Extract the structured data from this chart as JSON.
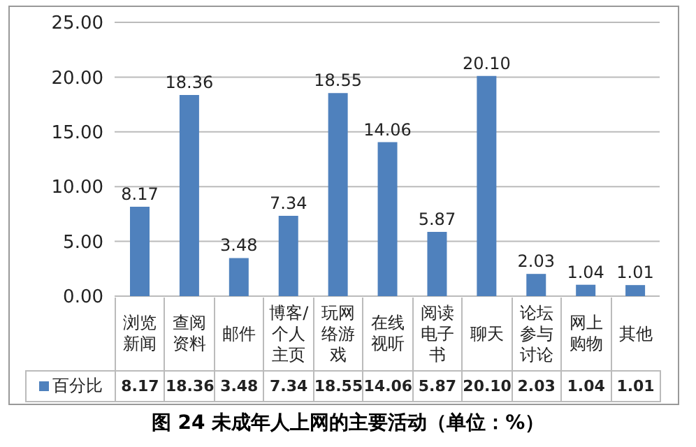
{
  "chart_data": {
    "type": "bar",
    "title": "图 24 未成年人上网的主要活动（单位：%）",
    "categories": [
      "浏览新闻",
      "查阅资料",
      "邮件",
      "博客/个人主页",
      "玩网络游戏",
      "在线视听",
      "阅读电子书",
      "聊天",
      "论坛参与讨论",
      "网上购物",
      "其他"
    ],
    "series": [
      {
        "name": "百分比",
        "color": "#4f81bd",
        "values": [
          8.17,
          18.36,
          3.48,
          7.34,
          18.55,
          14.06,
          5.87,
          20.1,
          2.03,
          1.04,
          1.01
        ],
        "value_labels": [
          "8.17",
          "18.36",
          "3.48",
          "7.34",
          "18.55",
          "14.06",
          "5.87",
          "20.10",
          "2.03",
          "1.04",
          "1.01"
        ]
      }
    ],
    "ylim": [
      0,
      25
    ],
    "yticks": [
      {
        "value": 0,
        "label": "0.00"
      },
      {
        "value": 5,
        "label": "5.00"
      },
      {
        "value": 10,
        "label": "10.00"
      },
      {
        "value": 15,
        "label": "15.00"
      },
      {
        "value": 20,
        "label": "20.00"
      },
      {
        "value": 25,
        "label": "25.00"
      }
    ],
    "grid": "y",
    "legend": "bottom"
  }
}
